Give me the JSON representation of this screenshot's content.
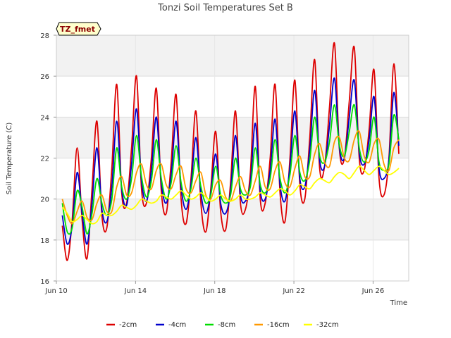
{
  "chart_data": {
    "type": "line",
    "title": "Tonzi Soil Temperatures Set B",
    "badge": "TZ_fmet",
    "xlabel": "Time",
    "ylabel": "Soil Temperature (C)",
    "xlim": [
      10,
      27.8
    ],
    "ylim": [
      16,
      28
    ],
    "x_ticks": [
      {
        "value": 10,
        "label": "Jun 10"
      },
      {
        "value": 14,
        "label": "Jun 14"
      },
      {
        "value": 18,
        "label": "Jun 18"
      },
      {
        "value": 22,
        "label": "Jun 22"
      },
      {
        "value": 26,
        "label": "Jun 26"
      }
    ],
    "y_ticks": [
      16,
      18,
      20,
      22,
      24,
      26,
      28
    ],
    "grid": true,
    "legend_position": "bottom",
    "series": [
      {
        "name": "-2cm",
        "color": "#dd0000",
        "x": [
          10.3,
          10.55,
          10.8,
          11.05,
          11.3,
          11.55,
          11.8,
          12.05,
          12.3,
          12.55,
          12.8,
          13.05,
          13.3,
          13.55,
          13.8,
          14.05,
          14.3,
          14.55,
          14.8,
          15.05,
          15.3,
          15.55,
          15.8,
          16.05,
          16.3,
          16.55,
          16.8,
          17.05,
          17.3,
          17.55,
          17.8,
          18.05,
          18.3,
          18.55,
          18.8,
          19.05,
          19.3,
          19.55,
          19.8,
          20.05,
          20.3,
          20.55,
          20.8,
          21.05,
          21.3,
          21.55,
          21.8,
          22.05,
          22.3,
          22.55,
          22.8,
          23.05,
          23.3,
          23.55,
          23.8,
          24.05,
          24.3,
          24.55,
          24.8,
          25.05,
          25.3,
          25.55,
          25.8,
          26.05,
          26.3,
          26.55,
          26.8,
          27.05,
          27.3
        ],
        "y": [
          18.7,
          17.0,
          19.0,
          22.5,
          19.0,
          17.1,
          20.5,
          23.8,
          19.2,
          18.6,
          21.5,
          25.6,
          20.3,
          19.8,
          22.5,
          26.0,
          20.5,
          19.8,
          22.0,
          25.4,
          20.4,
          19.3,
          21.8,
          25.1,
          20.0,
          18.8,
          21.0,
          24.3,
          19.8,
          18.4,
          20.5,
          23.3,
          19.4,
          18.5,
          20.8,
          24.3,
          19.8,
          19.5,
          21.3,
          25.5,
          20.0,
          19.8,
          22.0,
          25.6,
          20.3,
          18.9,
          22.0,
          25.8,
          20.7,
          20.0,
          23.0,
          26.8,
          21.5,
          21.6,
          24.5,
          27.6,
          22.4,
          22.0,
          24.8,
          27.4,
          22.0,
          21.4,
          23.4,
          26.3,
          21.0,
          20.2,
          22.0,
          26.6,
          22.2
        ]
      },
      {
        "name": "-4cm",
        "color": "#0000cc",
        "x": [
          10.3,
          10.55,
          10.8,
          11.05,
          11.3,
          11.55,
          11.8,
          12.05,
          12.3,
          12.55,
          12.8,
          13.05,
          13.3,
          13.55,
          13.8,
          14.05,
          14.3,
          14.55,
          14.8,
          15.05,
          15.3,
          15.55,
          15.8,
          16.05,
          16.3,
          16.55,
          16.8,
          17.05,
          17.3,
          17.55,
          17.8,
          18.05,
          18.3,
          18.55,
          18.8,
          19.05,
          19.3,
          19.55,
          19.8,
          20.05,
          20.3,
          20.55,
          20.8,
          21.05,
          21.3,
          21.55,
          21.8,
          22.05,
          22.3,
          22.55,
          22.8,
          23.05,
          23.3,
          23.55,
          23.8,
          24.05,
          24.3,
          24.55,
          24.8,
          25.05,
          25.3,
          25.55,
          25.8,
          26.05,
          26.3,
          26.55,
          26.8,
          27.05,
          27.3
        ],
        "y": [
          19.2,
          17.8,
          18.7,
          21.3,
          19.3,
          17.8,
          19.8,
          22.5,
          19.5,
          18.9,
          20.6,
          23.8,
          20.5,
          19.7,
          21.7,
          24.4,
          20.9,
          19.9,
          21.4,
          24.0,
          20.8,
          19.8,
          21.2,
          23.8,
          20.6,
          19.5,
          20.7,
          23.0,
          20.3,
          19.3,
          20.3,
          22.2,
          19.8,
          19.3,
          20.4,
          23.1,
          20.2,
          19.9,
          20.8,
          23.7,
          20.4,
          20.0,
          21.4,
          23.9,
          20.7,
          19.9,
          21.6,
          24.3,
          21.0,
          20.6,
          22.4,
          25.3,
          21.9,
          21.6,
          23.6,
          25.9,
          22.5,
          22.0,
          24.0,
          25.8,
          22.3,
          21.7,
          22.9,
          25.0,
          21.5,
          21.0,
          21.9,
          25.2,
          22.6
        ]
      },
      {
        "name": "-8cm",
        "color": "#00dd00",
        "x": [
          10.3,
          10.55,
          10.8,
          11.05,
          11.3,
          11.55,
          11.8,
          12.05,
          12.3,
          12.55,
          12.8,
          13.05,
          13.3,
          13.55,
          13.8,
          14.05,
          14.3,
          14.55,
          14.8,
          15.05,
          15.3,
          15.55,
          15.8,
          16.05,
          16.3,
          16.55,
          16.8,
          17.05,
          17.3,
          17.55,
          17.8,
          18.05,
          18.3,
          18.55,
          18.8,
          19.05,
          19.3,
          19.55,
          19.8,
          20.05,
          20.3,
          20.55,
          20.8,
          21.05,
          21.3,
          21.55,
          21.8,
          22.05,
          22.3,
          22.55,
          22.8,
          23.05,
          23.3,
          23.55,
          23.8,
          24.05,
          24.3,
          24.55,
          24.8,
          25.05,
          25.3,
          25.55,
          25.8,
          26.05,
          26.3,
          26.55,
          26.8,
          27.05,
          27.3
        ],
        "y": [
          19.8,
          18.4,
          18.6,
          20.4,
          19.6,
          18.3,
          19.3,
          21.0,
          19.8,
          19.2,
          20.0,
          22.5,
          20.6,
          20.0,
          21.0,
          23.1,
          21.1,
          20.1,
          20.9,
          22.9,
          21.0,
          20.0,
          20.8,
          22.6,
          20.8,
          19.9,
          20.5,
          22.0,
          20.6,
          19.8,
          20.2,
          21.6,
          20.2,
          19.8,
          20.2,
          22.0,
          20.5,
          20.2,
          20.6,
          22.5,
          20.7,
          20.3,
          21.0,
          22.9,
          21.0,
          20.3,
          21.2,
          23.1,
          21.3,
          20.9,
          21.9,
          24.0,
          22.1,
          21.8,
          22.8,
          24.6,
          22.6,
          22.1,
          23.3,
          24.6,
          22.5,
          21.8,
          22.4,
          24.0,
          21.8,
          21.4,
          21.7,
          24.1,
          22.9
        ]
      },
      {
        "name": "-16cm",
        "color": "#ff9900",
        "x": [
          10.3,
          10.55,
          10.8,
          11.05,
          11.3,
          11.55,
          11.8,
          12.05,
          12.3,
          12.55,
          12.8,
          13.05,
          13.3,
          13.55,
          13.8,
          14.05,
          14.3,
          14.55,
          14.8,
          15.05,
          15.3,
          15.55,
          15.8,
          16.05,
          16.3,
          16.55,
          16.8,
          17.05,
          17.3,
          17.55,
          17.8,
          18.05,
          18.3,
          18.55,
          18.8,
          19.05,
          19.3,
          19.55,
          19.8,
          20.05,
          20.3,
          20.55,
          20.8,
          21.05,
          21.3,
          21.55,
          21.8,
          22.05,
          22.3,
          22.55,
          22.8,
          23.05,
          23.3,
          23.55,
          23.8,
          24.05,
          24.3,
          24.55,
          24.8,
          25.05,
          25.3,
          25.55,
          25.8,
          26.05,
          26.3,
          26.55,
          26.8,
          27.05,
          27.3
        ],
        "y": [
          20.0,
          19.2,
          18.8,
          19.4,
          19.9,
          19.1,
          19.0,
          19.8,
          20.2,
          19.4,
          19.4,
          20.6,
          21.1,
          20.2,
          20.3,
          21.3,
          21.7,
          20.7,
          20.5,
          21.4,
          21.7,
          20.7,
          20.5,
          21.2,
          21.6,
          20.5,
          20.3,
          20.9,
          21.3,
          20.2,
          20.0,
          20.7,
          20.9,
          20.1,
          19.9,
          20.6,
          21.1,
          20.4,
          20.2,
          20.9,
          21.6,
          20.6,
          20.5,
          21.4,
          21.8,
          20.8,
          20.6,
          21.5,
          22.1,
          21.1,
          21.1,
          22.2,
          22.7,
          21.8,
          21.6,
          22.8,
          23.0,
          22.0,
          21.9,
          22.9,
          23.3,
          22.1,
          21.8,
          22.7,
          22.9,
          21.7,
          21.4,
          22.5,
          22.9
        ]
      },
      {
        "name": "-32cm",
        "color": "#ffff00",
        "x": [
          10.3,
          10.55,
          10.8,
          11.05,
          11.3,
          11.55,
          11.8,
          12.05,
          12.3,
          12.55,
          12.8,
          13.05,
          13.3,
          13.55,
          13.8,
          14.05,
          14.3,
          14.55,
          14.8,
          15.05,
          15.3,
          15.55,
          15.8,
          16.05,
          16.3,
          16.55,
          16.8,
          17.05,
          17.3,
          17.55,
          17.8,
          18.05,
          18.3,
          18.55,
          18.8,
          19.05,
          19.3,
          19.55,
          19.8,
          20.05,
          20.3,
          20.55,
          20.8,
          21.05,
          21.3,
          21.55,
          21.8,
          22.05,
          22.3,
          22.55,
          22.8,
          23.05,
          23.3,
          23.55,
          23.8,
          24.05,
          24.3,
          24.55,
          24.8,
          25.05,
          25.3,
          25.55,
          25.8,
          26.05,
          26.3,
          26.55,
          26.8,
          27.05,
          27.3
        ],
        "y": [
          19.6,
          19.3,
          18.9,
          19.0,
          19.2,
          19.0,
          18.8,
          18.9,
          19.3,
          19.2,
          19.2,
          19.4,
          19.7,
          19.6,
          19.5,
          19.7,
          20.0,
          19.9,
          19.8,
          19.9,
          20.2,
          20.1,
          20.0,
          20.2,
          20.4,
          20.2,
          20.0,
          20.1,
          20.3,
          20.1,
          19.9,
          20.0,
          20.2,
          20.0,
          19.9,
          20.0,
          20.2,
          20.0,
          20.0,
          20.1,
          20.3,
          20.2,
          20.1,
          20.3,
          20.5,
          20.4,
          20.2,
          20.4,
          20.7,
          20.6,
          20.5,
          20.8,
          21.0,
          20.9,
          20.8,
          21.1,
          21.3,
          21.2,
          21.0,
          21.3,
          21.6,
          21.4,
          21.2,
          21.4,
          21.6,
          21.4,
          21.2,
          21.3,
          21.5
        ]
      }
    ]
  }
}
